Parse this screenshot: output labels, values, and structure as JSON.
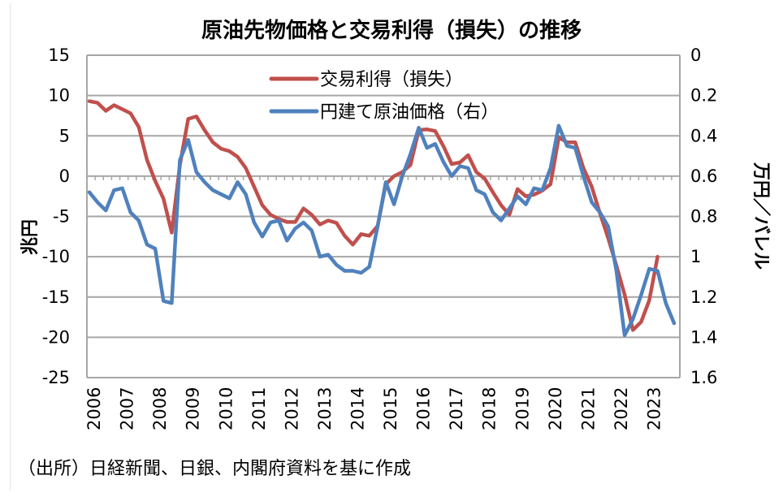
{
  "chart_data": {
    "type": "line",
    "title": "原油先物価格と交易利得（損失）の推移",
    "ylabel": "兆円",
    "ylabel_right": "万円／バレル",
    "ylim": [
      -25,
      15
    ],
    "ylim_right": [
      1.6,
      0
    ],
    "y_ticks": [
      "15",
      "10",
      "5",
      "0",
      "-5",
      "-10",
      "-15",
      "-20",
      "-25"
    ],
    "y_ticks_right": [
      "0",
      "0.2",
      "0.4",
      "0.6",
      "0.8",
      "1",
      "1.2",
      "1.4",
      "1.6"
    ],
    "x_ticks": [
      "2006",
      "2007",
      "2008",
      "2009",
      "2010",
      "2011",
      "2012",
      "2013",
      "2014",
      "2015",
      "2016",
      "2017",
      "2018",
      "2019",
      "2020",
      "2021",
      "2022",
      "2023"
    ],
    "x_start": "2006Q1",
    "frequency": "quarterly",
    "grid": true,
    "legend_position": "top-center",
    "source": "（出所）日経新聞、日銀、内閣府資料を基に作成",
    "colors": {
      "red": "#c0504d",
      "blue": "#4f81bd",
      "grid": "#a6a6a6"
    },
    "series": [
      {
        "name": "交易利得（損失）",
        "axis": "left",
        "color": "#c0504d",
        "values": [
          9.3,
          9.1,
          8.1,
          8.8,
          8.3,
          7.8,
          6.1,
          2.0,
          -0.6,
          -2.8,
          -7.0,
          1.4,
          7.1,
          7.4,
          5.7,
          4.2,
          3.4,
          3.1,
          2.4,
          1.0,
          -1.3,
          -3.6,
          -4.8,
          -5.3,
          -5.7,
          -5.7,
          -4.0,
          -4.8,
          -6.0,
          -5.5,
          -5.8,
          -7.4,
          -8.5,
          -7.2,
          -7.4,
          -6.2,
          -1.0,
          0.0,
          0.5,
          1.4,
          5.7,
          5.8,
          5.6,
          3.7,
          1.5,
          1.7,
          2.6,
          0.5,
          -0.3,
          -2.0,
          -3.6,
          -4.8,
          -1.6,
          -2.5,
          -2.3,
          -1.8,
          -1.0,
          4.8,
          4.2,
          4.2,
          1.0,
          -1.3,
          -4.6,
          -7.7,
          -11.1,
          -14.7,
          -19.1,
          -18.1,
          -15.4,
          -10.0
        ]
      },
      {
        "name": "円建て原油価格（右）",
        "axis": "right",
        "color": "#4f81bd",
        "values": [
          0.68,
          0.73,
          0.77,
          0.67,
          0.66,
          0.78,
          0.82,
          0.94,
          0.96,
          1.22,
          1.23,
          0.52,
          0.42,
          0.58,
          0.63,
          0.67,
          0.69,
          0.71,
          0.63,
          0.69,
          0.83,
          0.9,
          0.83,
          0.82,
          0.92,
          0.86,
          0.83,
          0.87,
          1.0,
          0.99,
          1.04,
          1.07,
          1.07,
          1.08,
          1.05,
          0.85,
          0.63,
          0.74,
          0.6,
          0.49,
          0.36,
          0.46,
          0.44,
          0.53,
          0.6,
          0.55,
          0.56,
          0.67,
          0.69,
          0.78,
          0.82,
          0.76,
          0.7,
          0.74,
          0.66,
          0.67,
          0.56,
          0.35,
          0.45,
          0.46,
          0.6,
          0.73,
          0.78,
          0.85,
          1.07,
          1.39,
          1.31,
          1.19,
          1.06,
          1.07,
          1.23,
          1.33
        ]
      }
    ]
  }
}
